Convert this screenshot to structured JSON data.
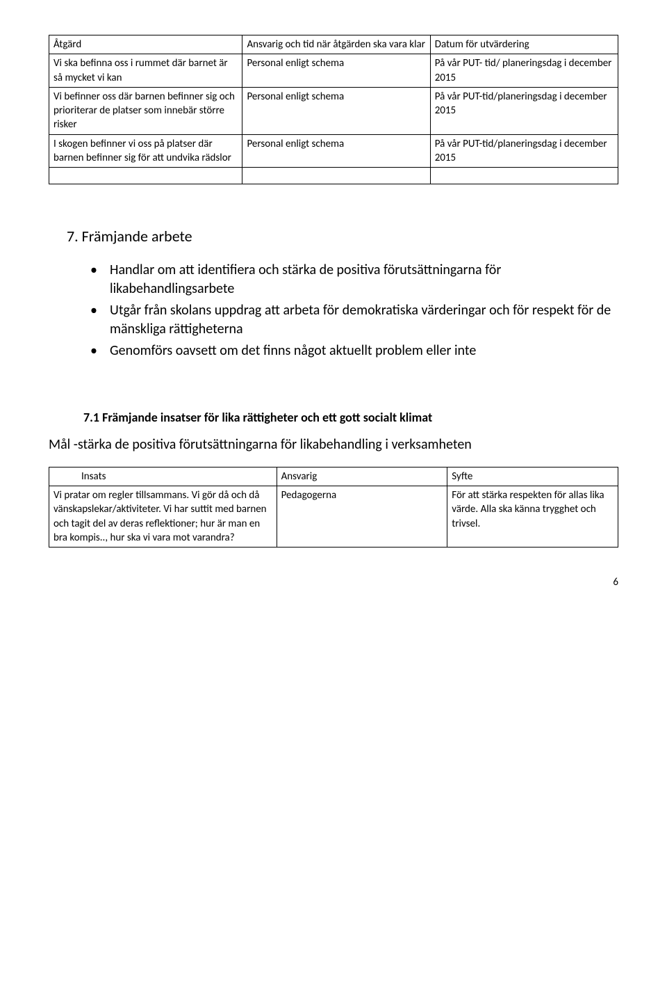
{
  "table1": {
    "header": {
      "c1": "Åtgärd",
      "c2": "Ansvarig och tid när åtgärden ska vara klar",
      "c3": "Datum för utvärdering"
    },
    "rows": [
      {
        "c1": "Vi ska befinna oss i rummet där barnet är så mycket vi kan",
        "c2": "Personal enligt schema",
        "c3": "På vår PUT- tid/ planeringsdag i december 2015"
      },
      {
        "c1": "Vi befinner oss där barnen befinner sig och prioriterar de platser som innebär större risker",
        "c2": "Personal enligt schema",
        "c3": "På vår PUT-tid/planeringsdag i december 2015"
      },
      {
        "c1": "I skogen befinner vi oss på platser där barnen befinner sig för att undvika rädslor",
        "c2": "Personal enligt schema",
        "c3": "På vår PUT-tid/planeringsdag i december 2015"
      }
    ]
  },
  "section7": {
    "title": "7. Främjande arbete",
    "bullets": [
      "Handlar om att identifiera och stärka de positiva förutsättningarna för likabehandlingsarbete",
      "Utgår från skolans uppdrag att arbeta för demokratiska värderingar och för respekt för de mänskliga rättigheterna",
      "Genomförs oavsett om det finns något aktuellt problem eller inte"
    ]
  },
  "section71": {
    "title": "7.1 Främjande insatser för lika rättigheter och ett gott socialt klimat",
    "goal": "Mål -stärka de positiva förutsättningarna för likabehandling i verksamheten",
    "header": {
      "c1": "Insats",
      "c2": "Ansvarig",
      "c3": "Syfte"
    },
    "row": {
      "c1": "Vi pratar om regler tillsammans. Vi gör då och då vänskapslekar/aktiviteter. Vi har suttit med barnen och tagit del av deras reflektioner; hur är man en bra kompis.., hur ska vi vara mot varandra?",
      "c2": "Pedagogerna",
      "c3": "För att stärka respekten för allas lika värde. Alla ska känna trygghet och trivsel."
    }
  },
  "pagenum": "6"
}
